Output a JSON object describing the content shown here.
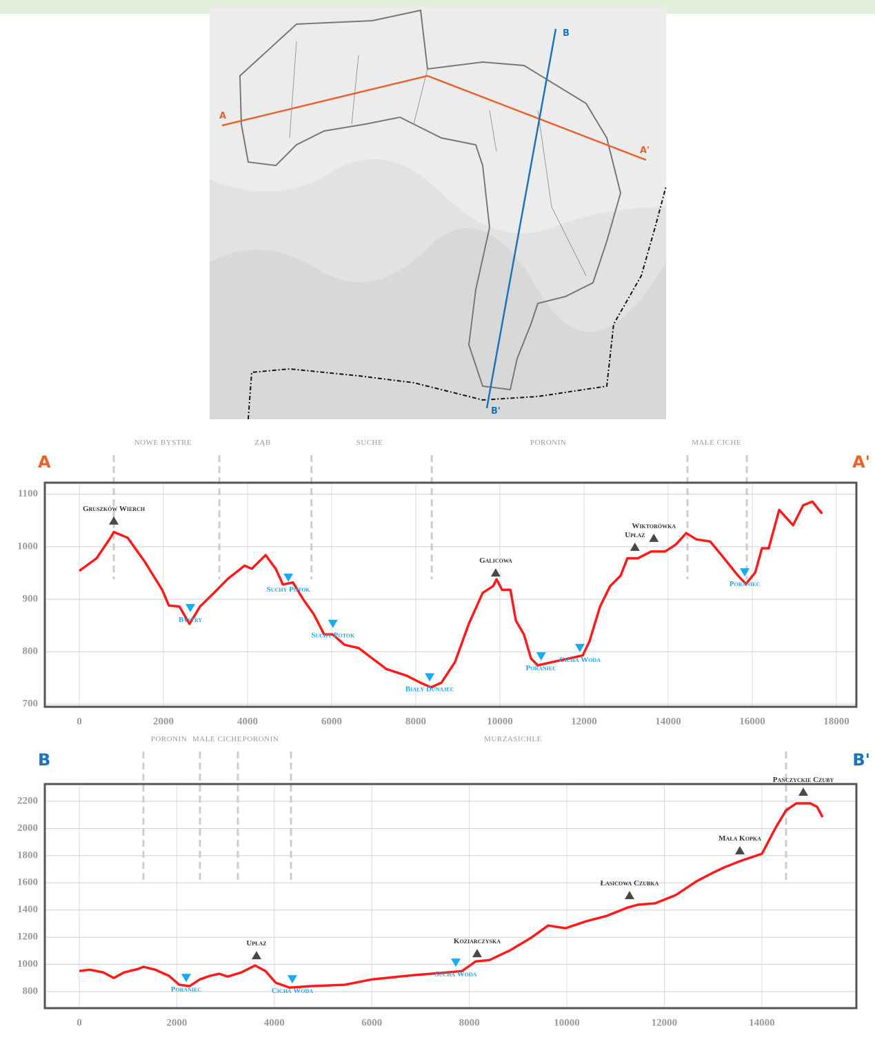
{
  "map": {
    "labels": [
      "A",
      "A'",
      "B",
      "B'"
    ]
  },
  "chart_data": [
    {
      "type": "line",
      "start_label": "A",
      "end_label": "A'",
      "xlim": [
        -820,
        18475
      ],
      "ylim": [
        695,
        1122
      ],
      "xticks": [
        0,
        2000,
        4000,
        6000,
        8000,
        10000,
        12000,
        14000,
        16000,
        18000
      ],
      "yticks": [
        700,
        800,
        900,
        1000,
        1100
      ],
      "grid": true,
      "x": [
        0,
        410,
        740,
        820,
        1150,
        1560,
        1970,
        2130,
        2380,
        2620,
        2870,
        3200,
        3520,
        3930,
        4100,
        4430,
        4670,
        4840,
        5080,
        5330,
        5570,
        5820,
        6020,
        6310,
        6640,
        6970,
        7300,
        7790,
        8110,
        8360,
        8610,
        8930,
        9260,
        9590,
        9840,
        9920,
        10050,
        10250,
        10380,
        10570,
        10740,
        10900,
        11230,
        11640,
        11970,
        12130,
        12380,
        12620,
        12870,
        13030,
        13280,
        13600,
        13930,
        14180,
        14430,
        14670,
        15000,
        15330,
        15660,
        15850,
        16070,
        16230,
        16390,
        16640,
        16970,
        17210,
        17430,
        17660
      ],
      "series": [
        {
          "color": "#ff1a1a",
          "values": [
            954,
            978,
            1017,
            1028,
            1017,
            971,
            918,
            888,
            886,
            853,
            886,
            912,
            938,
            964,
            958,
            984,
            958,
            928,
            932,
            899,
            872,
            833,
            833,
            813,
            807,
            787,
            767,
            754,
            741,
            732,
            741,
            780,
            853,
            912,
            925,
            938,
            918,
            918,
            859,
            833,
            787,
            774,
            780,
            787,
            793,
            820,
            886,
            925,
            945,
            978,
            978,
            991,
            991,
            1004,
            1026,
            1014,
            1010,
            978,
            945,
            929,
            951,
            997,
            997,
            1070,
            1041,
            1079,
            1086,
            1063
          ]
        }
      ],
      "annotations": [
        {
          "text": "Gruszków Wierch",
          "x": 820,
          "y": 1050,
          "kind": "peak"
        },
        {
          "text": "Bystry",
          "x": 2640,
          "y": 883,
          "kind": "river"
        },
        {
          "text": "Suchy Potok",
          "x": 4970,
          "y": 941,
          "kind": "river"
        },
        {
          "text": "Suchy Potok",
          "x": 6030,
          "y": 853,
          "kind": "river"
        },
        {
          "text": "Biały Dunajec",
          "x": 8330,
          "y": 751,
          "kind": "river"
        },
        {
          "text": "Galicowa",
          "x": 9900,
          "y": 951,
          "kind": "peak"
        },
        {
          "text": "Poraniec",
          "x": 10980,
          "y": 791,
          "kind": "river"
        },
        {
          "text": "Cicha Woda",
          "x": 11900,
          "y": 807,
          "kind": "river"
        },
        {
          "text": "Upłaz",
          "x": 13210,
          "y": 1000,
          "kind": "peak"
        },
        {
          "text": "Wiktorówka",
          "x": 13660,
          "y": 1017,
          "kind": "peak"
        },
        {
          "text": "Poraniec",
          "x": 15820,
          "y": 951,
          "kind": "river"
        }
      ],
      "regions": [
        {
          "label": "NOWE BYSTRE",
          "x": 1990
        },
        {
          "label": "ZĄB",
          "x": 4360
        },
        {
          "label": "SUCHE",
          "x": 6900
        },
        {
          "label": "PORONIN",
          "x": 11150
        },
        {
          "label": "MAŁE CICHE",
          "x": 15150
        }
      ],
      "boundaries": [
        820,
        3330,
        5520,
        8380,
        14460,
        15870
      ]
    },
    {
      "type": "line",
      "start_label": "B",
      "end_label": "B'",
      "xlim": [
        -707,
        15940
      ],
      "ylim": [
        678,
        2327
      ],
      "xticks": [
        0,
        2000,
        4000,
        6000,
        8000,
        10000,
        12000,
        14000
      ],
      "yticks": [
        800,
        1000,
        1200,
        1400,
        1600,
        1800,
        2000,
        2200
      ],
      "grid": true,
      "x": [
        0,
        212,
        495,
        707,
        919,
        1202,
        1315,
        1556,
        1839,
        2051,
        2263,
        2475,
        2687,
        2871,
        3041,
        3324,
        3607,
        3819,
        4031,
        4314,
        4738,
        5446,
        6011,
        6860,
        7567,
        7850,
        8133,
        8416,
        8840,
        9264,
        9618,
        9972,
        10396,
        10820,
        11245,
        11457,
        11810,
        12235,
        12659,
        13013,
        13225,
        13579,
        14003,
        14286,
        14498,
        14710,
        14993,
        15134,
        15247
      ],
      "series": [
        {
          "color": "#ff1a1a",
          "values": [
            951,
            961,
            941,
            900,
            941,
            966,
            982,
            961,
            916,
            850,
            840,
            890,
            916,
            931,
            910,
            941,
            992,
            951,
            865,
            829,
            840,
            850,
            890,
            921,
            941,
            951,
            1022,
            1032,
            1104,
            1195,
            1286,
            1266,
            1317,
            1357,
            1418,
            1439,
            1449,
            1510,
            1611,
            1677,
            1713,
            1763,
            1814,
            2007,
            2134,
            2185,
            2185,
            2159,
            2083
          ]
        }
      ],
      "annotations": [
        {
          "text": "Poraniec",
          "x": 2192,
          "y": 900,
          "kind": "river"
        },
        {
          "text": "Upłaz",
          "x": 3635,
          "y": 1068,
          "kind": "peak"
        },
        {
          "text": "Cicha Woda",
          "x": 4370,
          "y": 890,
          "kind": "river"
        },
        {
          "text": "Sucha Woda",
          "x": 7723,
          "y": 1012,
          "kind": "river"
        },
        {
          "text": "Koziarczyska",
          "x": 8161,
          "y": 1083,
          "kind": "peak"
        },
        {
          "text": "Łasicowa Czubka",
          "x": 11287,
          "y": 1510,
          "kind": "peak"
        },
        {
          "text": "Mała Kopka",
          "x": 13550,
          "y": 1840,
          "kind": "peak"
        },
        {
          "text": "Pańczyckie Czuby",
          "x": 14851,
          "y": 2271,
          "kind": "peak"
        }
      ],
      "regions": [
        {
          "label": "PORONIN",
          "x": 1839
        },
        {
          "label": "MAŁE CICHE",
          "x": 2829
        },
        {
          "label": "PORONIN",
          "x": 3720
        },
        {
          "label": "MURZASICHLE",
          "x": 8897
        }
      ],
      "boundaries": [
        1315,
        2475,
        3253,
        4342,
        14498
      ]
    }
  ]
}
